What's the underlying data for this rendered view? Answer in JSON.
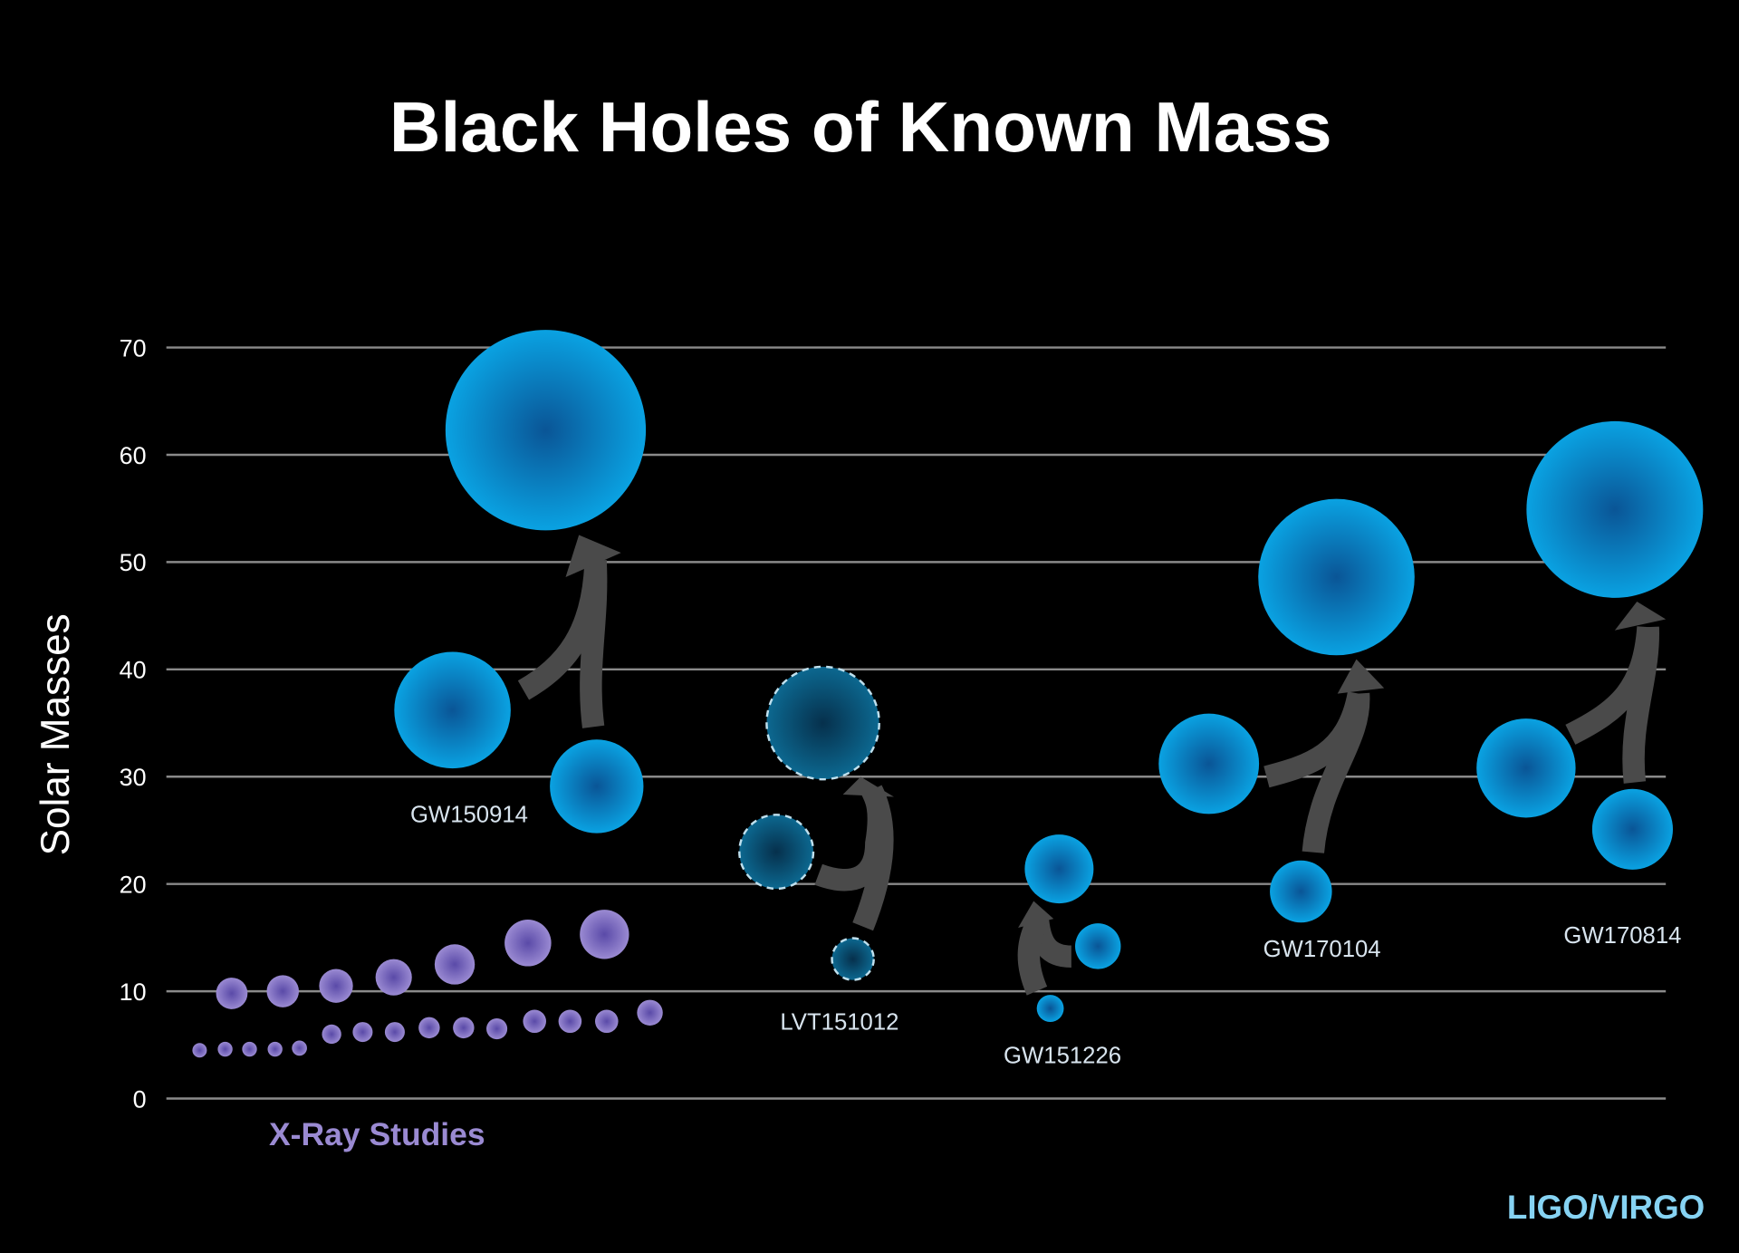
{
  "chart_data": {
    "type": "scatter",
    "title": "Black Holes of Known Mass",
    "ylabel": "Solar Masses",
    "xlabel": "",
    "ylim": [
      0,
      70
    ],
    "yticks": [
      0,
      10,
      20,
      30,
      40,
      50,
      60,
      70
    ],
    "grid": true,
    "xray": {
      "label": "X-Ray Studies",
      "color": "#9a8ad2",
      "upper_row": [
        9.8,
        10.0,
        10.5,
        11.3,
        12.5,
        14.5,
        15.3
      ],
      "lower_row": [
        4.5,
        4.6,
        4.6,
        4.6,
        4.7,
        6.0,
        6.2,
        6.2,
        6.6,
        6.6,
        6.5,
        7.2,
        7.2,
        7.2,
        8.0
      ]
    },
    "mergers": [
      {
        "name": "GW150914",
        "primary": 36.2,
        "secondary": 29.1,
        "final": 62.3,
        "candidate": false
      },
      {
        "name": "LVT151012",
        "primary": 23.0,
        "secondary": 13.0,
        "final": 35.0,
        "candidate": true
      },
      {
        "name": "GW151226",
        "primary": 14.2,
        "secondary": 8.4,
        "final": 21.4,
        "candidate": false
      },
      {
        "name": "GW170104",
        "primary": 31.2,
        "secondary": 19.3,
        "final": 48.6,
        "candidate": false
      },
      {
        "name": "GW170814",
        "primary": 30.8,
        "secondary": 25.1,
        "final": 54.9,
        "candidate": false
      }
    ],
    "credit": "LIGO/VIRGO",
    "colors": {
      "ligo": "#0a9ede",
      "ligo_center": "#0a5596",
      "candidate": "#0c6890",
      "candidate_center": "#06304c",
      "arrow": "#4a4a4a",
      "grid": "#8a8a8a",
      "credit": "#86d3f3"
    }
  }
}
